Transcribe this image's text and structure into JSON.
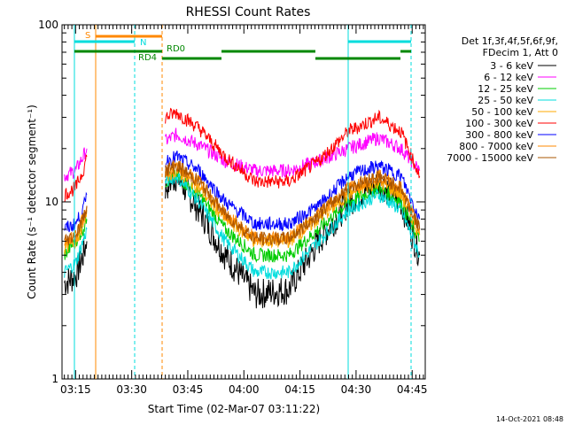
{
  "chart_data": {
    "type": "line",
    "title": "RHESSI Count Rates",
    "xlabel": "Start Time (02-Mar-07 03:11:22)",
    "ylabel": "Count Rate (s⁻¹ detector segment⁻¹)",
    "yscale": "log",
    "ylim": [
      1,
      100
    ],
    "xlim_minutes": [
      "03:11:22",
      "04:48:30"
    ],
    "x_ticks": [
      "03:15",
      "03:30",
      "03:45",
      "04:00",
      "04:15",
      "04:30",
      "04:45"
    ],
    "y_ticks": [
      "1",
      "10",
      "100"
    ],
    "x": [
      "03:12",
      "03:15",
      "03:17",
      "03:18",
      "03:39",
      "03:42",
      "03:48",
      "03:55",
      "04:03",
      "04:12",
      "04:20",
      "04:28",
      "04:36",
      "04:42",
      "04:47"
    ],
    "series": [
      {
        "name": "3 - 6 keV",
        "color": "#000000",
        "values": [
          3.5,
          3.8,
          5.0,
          6.0,
          12,
          14,
          9,
          5,
          3.0,
          3.2,
          6,
          10,
          13,
          10,
          5
        ]
      },
      {
        "name": "6 - 12 keV",
        "color": "#ff00ff",
        "values": [
          14,
          15,
          18,
          20,
          22,
          24,
          21,
          17,
          15,
          15,
          17,
          20,
          23,
          20,
          15
        ]
      },
      {
        "name": "12 - 25 keV",
        "color": "#00cc00",
        "values": [
          5,
          6,
          7,
          8,
          13,
          14,
          11,
          7,
          5,
          5,
          7,
          10,
          12,
          10,
          6
        ]
      },
      {
        "name": "25 - 50 keV",
        "color": "#00dddd",
        "values": [
          4,
          4.5,
          6,
          7,
          13,
          14,
          10,
          6,
          4,
          4,
          6,
          9,
          11,
          9,
          5
        ]
      },
      {
        "name": "50 - 100 keV",
        "color": "#ffaa00",
        "values": [
          5.5,
          6,
          7.5,
          9,
          14,
          15,
          12,
          8,
          6,
          6,
          8,
          11,
          13,
          11,
          6.5
        ]
      },
      {
        "name": "100 - 300 keV",
        "color": "#ff0000",
        "values": [
          11,
          12,
          15,
          18,
          30,
          32,
          26,
          18,
          13,
          13,
          17,
          25,
          30,
          25,
          14
        ]
      },
      {
        "name": "300 - 800 keV",
        "color": "#0000ff",
        "values": [
          7,
          7.5,
          9,
          11,
          17,
          18,
          15,
          10,
          7.5,
          7.5,
          9.5,
          14,
          16,
          14,
          8
        ]
      },
      {
        "name": "800 - 7000 keV",
        "color": "#ff8800",
        "values": [
          6,
          6.5,
          8,
          9.5,
          15,
          16,
          13,
          8.5,
          6.2,
          6.2,
          8.5,
          12,
          14,
          12,
          7
        ]
      },
      {
        "name": "7000 - 15000 keV",
        "color": "#aa5500",
        "values": [
          6,
          6.5,
          8,
          9.5,
          15,
          16,
          13,
          8.5,
          6.2,
          6.2,
          8.5,
          12,
          14,
          12,
          7
        ]
      }
    ],
    "legend": {
      "header": [
        "Det 1f,3f,4f,5f,6f,9f,",
        "FDecim 1, Att 0"
      ],
      "items": [
        {
          "label": "3 - 6 keV",
          "color": "#000000"
        },
        {
          "label": "6 - 12 keV",
          "color": "#ff00ff"
        },
        {
          "label": "12 - 25 keV",
          "color": "#00cc00"
        },
        {
          "label": "25 - 50 keV",
          "color": "#00dddd"
        },
        {
          "label": "50 - 100 keV",
          "color": "#ffaa00"
        },
        {
          "label": "100 - 300 keV",
          "color": "#ff0000"
        },
        {
          "label": "300 - 800 keV",
          "color": "#0000ff"
        },
        {
          "label": "800 - 7000 keV",
          "color": "#ff8800"
        },
        {
          "label": "7000 - 15000 keV",
          "color": "#aa5500"
        }
      ]
    },
    "annotations": {
      "s_label": "S",
      "n_label": "N",
      "rd0_label": "RD0",
      "rd4_label": "RD4"
    },
    "footer_date": "14-Oct-2021 08:48"
  }
}
